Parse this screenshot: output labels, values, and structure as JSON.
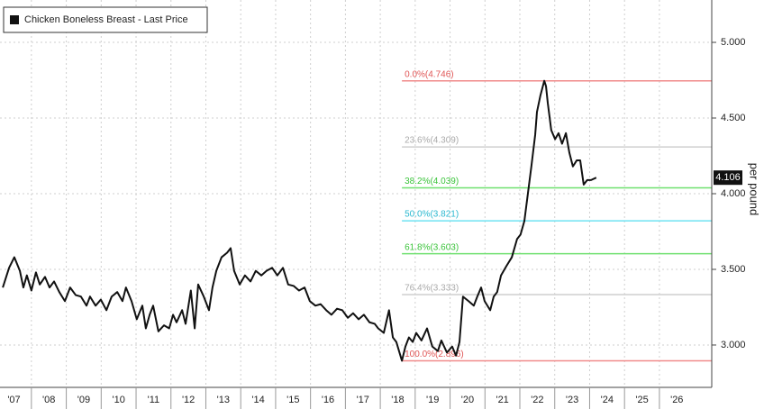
{
  "chart_data": {
    "type": "line",
    "legend": "Chicken Boneless Breast - Last Price",
    "y_label": "per pound",
    "last_value_label": "4.106",
    "xlim": [
      2007.1,
      2027.5
    ],
    "ylim": [
      2.72,
      5.28
    ],
    "grid": true,
    "xticks": [
      {
        "value": 2007,
        "label": "'07"
      },
      {
        "value": 2008,
        "label": "'08"
      },
      {
        "value": 2009,
        "label": "'09"
      },
      {
        "value": 2010,
        "label": "'10"
      },
      {
        "value": 2011,
        "label": "'11"
      },
      {
        "value": 2012,
        "label": "'12"
      },
      {
        "value": 2013,
        "label": "'13"
      },
      {
        "value": 2014,
        "label": "'14"
      },
      {
        "value": 2015,
        "label": "'15"
      },
      {
        "value": 2016,
        "label": "'16"
      },
      {
        "value": 2017,
        "label": "'17"
      },
      {
        "value": 2018,
        "label": "'18"
      },
      {
        "value": 2019,
        "label": "'19"
      },
      {
        "value": 2020,
        "label": "'20"
      },
      {
        "value": 2021,
        "label": "'21"
      },
      {
        "value": 2022,
        "label": "'22"
      },
      {
        "value": 2023,
        "label": "'23"
      },
      {
        "value": 2024,
        "label": "'24"
      },
      {
        "value": 2025,
        "label": "'25"
      },
      {
        "value": 2026,
        "label": "'26"
      }
    ],
    "yticks": [
      {
        "value": 3,
        "label": "3.000"
      },
      {
        "value": 3.5,
        "label": "3.500"
      },
      {
        "value": 4,
        "label": "4.000"
      },
      {
        "value": 4.5,
        "label": "4.500"
      },
      {
        "value": 5,
        "label": "5.000"
      }
    ],
    "series": [
      {
        "name": "Chicken Boneless Breast - Last Price",
        "color": "#111111",
        "x": [
          2007.18,
          2007.36,
          2007.51,
          2007.67,
          2007.77,
          2007.87,
          2008.0,
          2008.13,
          2008.24,
          2008.39,
          2008.52,
          2008.65,
          2008.8,
          2008.96,
          2009.11,
          2009.27,
          2009.42,
          2009.58,
          2009.68,
          2009.84,
          2009.99,
          2010.15,
          2010.3,
          2010.46,
          2010.61,
          2010.71,
          2010.87,
          2011.02,
          2011.18,
          2011.28,
          2011.39,
          2011.49,
          2011.64,
          2011.8,
          2011.95,
          2012.06,
          2012.16,
          2012.32,
          2012.42,
          2012.57,
          2012.68,
          2012.78,
          2012.94,
          2013.09,
          2013.19,
          2013.3,
          2013.45,
          2013.61,
          2013.71,
          2013.81,
          2013.97,
          2014.12,
          2014.28,
          2014.43,
          2014.59,
          2014.74,
          2014.9,
          2015.05,
          2015.21,
          2015.36,
          2015.52,
          2015.67,
          2015.83,
          2015.98,
          2016.14,
          2016.29,
          2016.45,
          2016.6,
          2016.76,
          2016.91,
          2017.07,
          2017.22,
          2017.38,
          2017.53,
          2017.69,
          2017.84,
          2017.94,
          2018.1,
          2018.25,
          2018.36,
          2018.46,
          2018.62,
          2018.72,
          2018.82,
          2018.93,
          2019.03,
          2019.18,
          2019.34,
          2019.49,
          2019.65,
          2019.75,
          2019.91,
          2020.06,
          2020.17,
          2020.27,
          2020.37,
          2020.53,
          2020.68,
          2020.78,
          2020.89,
          2020.99,
          2021.15,
          2021.25,
          2021.35,
          2021.46,
          2021.61,
          2021.77,
          2021.92,
          2022.02,
          2022.13,
          2022.23,
          2022.33,
          2022.44,
          2022.49,
          2022.59,
          2022.7,
          2022.75,
          2022.8,
          2022.9,
          2023.01,
          2023.11,
          2023.21,
          2023.32,
          2023.42,
          2023.52,
          2023.63,
          2023.73,
          2023.83,
          2023.93,
          2024.04,
          2024.19
        ],
        "values": [
          3.38,
          3.51,
          3.58,
          3.49,
          3.38,
          3.46,
          3.36,
          3.48,
          3.4,
          3.45,
          3.38,
          3.42,
          3.35,
          3.29,
          3.38,
          3.33,
          3.32,
          3.26,
          3.32,
          3.26,
          3.3,
          3.23,
          3.32,
          3.35,
          3.29,
          3.38,
          3.29,
          3.17,
          3.26,
          3.11,
          3.2,
          3.26,
          3.09,
          3.13,
          3.11,
          3.2,
          3.15,
          3.23,
          3.14,
          3.36,
          3.11,
          3.4,
          3.32,
          3.23,
          3.38,
          3.49,
          3.58,
          3.61,
          3.64,
          3.49,
          3.4,
          3.46,
          3.42,
          3.49,
          3.46,
          3.49,
          3.51,
          3.46,
          3.51,
          3.4,
          3.39,
          3.36,
          3.38,
          3.29,
          3.26,
          3.27,
          3.23,
          3.2,
          3.24,
          3.23,
          3.18,
          3.21,
          3.17,
          3.2,
          3.15,
          3.14,
          3.11,
          3.08,
          3.23,
          3.05,
          3.02,
          2.896,
          2.99,
          3.05,
          3.02,
          3.08,
          3.03,
          3.11,
          2.99,
          2.96,
          3.03,
          2.95,
          2.99,
          2.93,
          3.02,
          3.32,
          3.29,
          3.26,
          3.32,
          3.38,
          3.29,
          3.23,
          3.32,
          3.35,
          3.46,
          3.52,
          3.58,
          3.7,
          3.73,
          3.82,
          4.0,
          4.18,
          4.39,
          4.54,
          4.65,
          4.746,
          4.71,
          4.6,
          4.42,
          4.36,
          4.4,
          4.33,
          4.4,
          4.27,
          4.18,
          4.22,
          4.22,
          4.06,
          4.09,
          4.09,
          4.106
        ]
      }
    ],
    "fib_start": 2018.62,
    "fib_levels": [
      {
        "label": "0.0%(4.746)",
        "value": 4.746,
        "color": "#f08a8a"
      },
      {
        "label": "23.6%(4.309)",
        "value": 4.309,
        "color": "#cfcfcf"
      },
      {
        "label": "38.2%(4.039)",
        "value": 4.039,
        "color": "#6fe06f"
      },
      {
        "label": "50.0%(3.821)",
        "value": 3.821,
        "color": "#6fe3f2"
      },
      {
        "label": "61.8%(3.603)",
        "value": 3.603,
        "color": "#6fe06f"
      },
      {
        "label": "76.4%(3.333)",
        "value": 3.333,
        "color": "#cfcfcf"
      },
      {
        "label": "100.0%(2.896)",
        "value": 2.896,
        "color": "#f08a8a"
      }
    ]
  }
}
